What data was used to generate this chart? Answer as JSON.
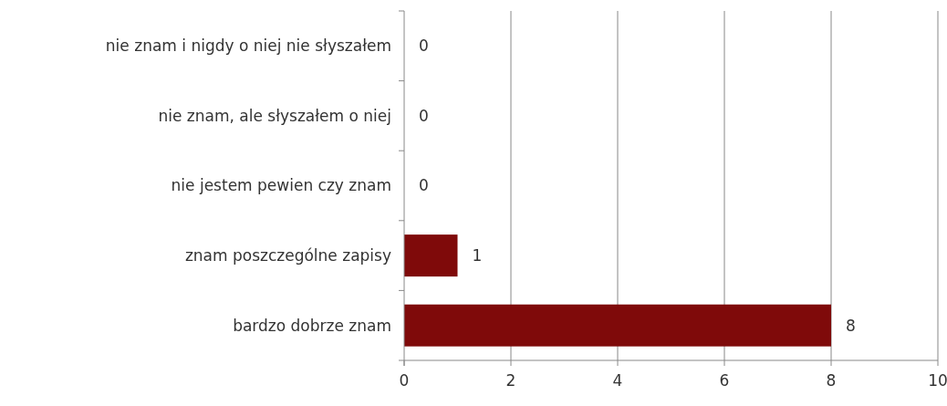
{
  "chart_data": {
    "type": "bar",
    "orientation": "horizontal",
    "categories": [
      "nie znam i nigdy o niej nie słyszałem",
      "nie znam, ale słyszałem o niej",
      "nie jestem pewien czy znam",
      "znam poszczególne zapisy",
      "bardzo dobrze znam"
    ],
    "values": [
      0,
      0,
      0,
      1,
      8
    ],
    "color": "#7f0a0a",
    "xlim": [
      0,
      10
    ],
    "xticks": [
      0,
      2,
      4,
      6,
      8,
      10
    ],
    "grid": "x",
    "data_labels": true
  }
}
